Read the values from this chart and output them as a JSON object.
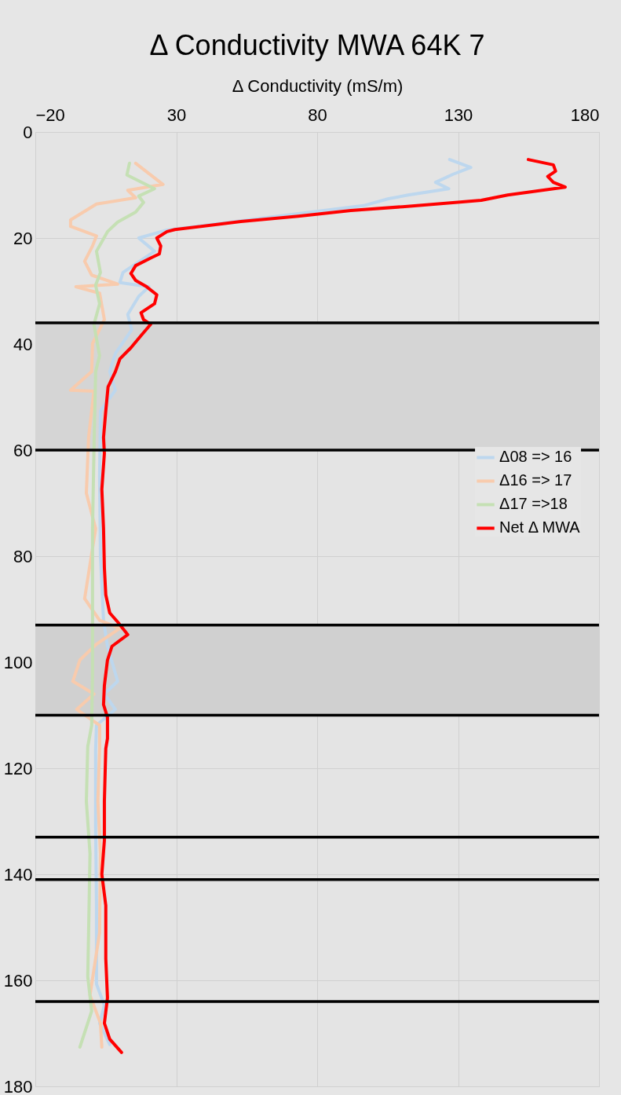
{
  "chart_data": {
    "type": "line",
    "title": "Δ Conductivity MWA 64K 7",
    "xlabel": "Δ Conductivity (mS/m)",
    "xlim": [
      -20,
      180
    ],
    "xticks": [
      -20,
      30,
      80,
      130,
      180
    ],
    "ylim": [
      180,
      0
    ],
    "yticks": [
      0,
      20,
      40,
      60,
      80,
      100,
      120,
      140,
      160,
      180
    ],
    "grid": true,
    "legend": "right",
    "line_style": "solid",
    "marker": "none",
    "series": [
      {
        "name": "Δ08 => 16",
        "color": "#bdd7ee",
        "x": [
          127,
          134.5,
          128.1,
          122,
          126.7,
          112.3,
          105.3,
          96.4,
          73.3,
          26.7,
          16.7,
          22.3,
          11.1,
          10,
          20.3,
          16.7,
          12.8,
          14.2,
          8.4,
          6.4,
          8.4,
          3.1,
          2.8,
          3.1,
          4.2,
          5.6,
          9.2,
          4.5,
          8.4,
          1.7,
          1.4,
          1.4,
          1.7,
          1.7,
          4.5,
          2.8,
          6.4
        ],
        "values": [
          5.2,
          6.7,
          8,
          9.5,
          10.7,
          11.9,
          12.6,
          13.9,
          15.4,
          18.5,
          20,
          22.5,
          26.5,
          28.4,
          29.2,
          31,
          34.4,
          37.3,
          41.8,
          45.2,
          48.7,
          52.6,
          65,
          79.9,
          92.1,
          97,
          103.6,
          106,
          108.9,
          111.9,
          116.3,
          131.1,
          145.9,
          160.7,
          164.7,
          168.1,
          172.1
        ]
      },
      {
        "name": "Δ16 => 17",
        "color": "#f8cbad",
        "x": [
          15.6,
          25.3,
          12.8,
          15.6,
          1.7,
          -7.5,
          -7.5,
          1.7,
          0.3,
          -2.5,
          0,
          9.2,
          -5.6,
          2.8,
          4.5,
          0.3,
          0,
          -7.5,
          0.8,
          -1.1,
          -1.9,
          1.4,
          -2.5,
          2.8,
          10,
          1.7,
          -4.2,
          -6.7,
          0.8,
          -5.3,
          2.8,
          2.8,
          2.2,
          3.1,
          2.8,
          -0.6,
          3.1,
          3.6
        ],
        "values": [
          5.9,
          9.9,
          11,
          12.4,
          13.6,
          16.6,
          17.8,
          19.6,
          21.5,
          24.4,
          27,
          28.7,
          29.2,
          30.4,
          35.4,
          39.9,
          45.2,
          48.7,
          48.9,
          57.6,
          68.1,
          74.8,
          88,
          92.1,
          93.6,
          96.6,
          99.6,
          103.6,
          106,
          108.9,
          111.9,
          116.3,
          126.2,
          136.1,
          151,
          162.8,
          168.1,
          172.6
        ]
      },
      {
        "name": "Δ17 =>18",
        "color": "#c5e0b4",
        "x": [
          13.4,
          12.5,
          22.3,
          16.7,
          18.4,
          15.6,
          9.2,
          5.6,
          1.7,
          3.1,
          1.4,
          2.8,
          0.8,
          2.8,
          1.4,
          0.8,
          0.3,
          0.3,
          0.3,
          0,
          -1.4,
          -1.9,
          -0.6,
          -1.1,
          -1.4,
          0,
          -4.2
        ],
        "values": [
          5.9,
          8.1,
          10.7,
          12.1,
          13.3,
          15.1,
          17,
          18.8,
          22.5,
          26.5,
          28.9,
          32.4,
          36.3,
          42.2,
          45.2,
          60,
          74.8,
          89.6,
          102.1,
          111.9,
          115.9,
          126.2,
          136.1,
          151,
          159.3,
          165.8,
          172.6
        ]
      },
      {
        "name": "Net Δ MWA",
        "color": "#ff0000",
        "x": [
          154.9,
          163.8,
          164.6,
          161.8,
          163.8,
          168,
          147.6,
          138.2,
          129,
          110.3,
          91.9,
          73.3,
          52.9,
          29.5,
          26.7,
          23.1,
          24.5,
          24,
          21.2,
          15.6,
          13.9,
          15.6,
          19.5,
          23.1,
          22.3,
          17.5,
          18.4,
          20.9,
          17.5,
          13.9,
          10,
          8.4,
          5.8,
          5,
          4.2,
          4.5,
          3.6,
          4.2,
          4.5,
          5,
          6.4,
          9.2,
          12.8,
          7.2,
          5.6,
          4.5,
          4.2,
          5.6,
          5.6,
          5,
          4.5,
          4.5,
          3.6,
          5,
          5,
          5.6,
          4.5,
          6.4,
          10.6
        ],
        "values": [
          5.2,
          6.2,
          7.4,
          8.4,
          9.5,
          10.4,
          11.9,
          12.9,
          13.3,
          14.1,
          14.8,
          15.9,
          16.9,
          18.4,
          18.8,
          20,
          21.5,
          23,
          23.7,
          25.2,
          26.7,
          28,
          29.2,
          30.7,
          32.4,
          34.1,
          35.4,
          36.3,
          38.4,
          40.7,
          42.8,
          45.2,
          48.1,
          52.6,
          57.6,
          60.6,
          67.4,
          74.8,
          82.2,
          87.3,
          90.7,
          92.4,
          94.8,
          97,
          99.6,
          104.4,
          108,
          110.4,
          114.4,
          116.3,
          126.2,
          133.6,
          140,
          145.9,
          155.9,
          163.3,
          168.1,
          171.1,
          173.6
        ]
      }
    ],
    "bands": [
      {
        "axis": "y",
        "from": 36,
        "to": 60,
        "color": "#d5d5d5"
      },
      {
        "axis": "y",
        "from": 93,
        "to": 110,
        "color": "#d0d0d0"
      }
    ],
    "ref_lines": [
      {
        "axis": "y",
        "value": 36,
        "color": "#000000"
      },
      {
        "axis": "y",
        "value": 60,
        "color": "#000000"
      },
      {
        "axis": "y",
        "value": 93,
        "color": "#000000"
      },
      {
        "axis": "y",
        "value": 110,
        "color": "#000000"
      },
      {
        "axis": "y",
        "value": 133,
        "color": "#000000"
      },
      {
        "axis": "y",
        "value": 141,
        "color": "#000000"
      },
      {
        "axis": "y",
        "value": 164,
        "color": "#000000"
      }
    ]
  }
}
